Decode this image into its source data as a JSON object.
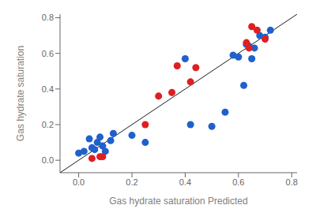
{
  "chart_data": {
    "type": "scatter",
    "xlabel": "Gas hydrate saturation Predicted",
    "ylabel": "Gas hydrate saturation",
    "xlim": [
      -0.07,
      0.82
    ],
    "ylim": [
      -0.07,
      0.82
    ],
    "xticks": [
      {
        "value": 0.0,
        "label": "0.0"
      },
      0.2,
      0.4,
      0.6,
      0.8
    ],
    "yticks": [
      {
        "value": 0.0,
        "label": "0.0"
      },
      0.2,
      0.4,
      0.6,
      0.8
    ],
    "grid": false,
    "series": [
      {
        "type": "line",
        "color": "#1a1a1a",
        "x": [
          -0.07,
          0.82
        ],
        "values": [
          -0.07,
          0.82
        ]
      },
      {
        "type": "scatter",
        "color": "#2060cc",
        "x": [
          0.0,
          0.02,
          0.04,
          0.05,
          0.06,
          0.07,
          0.08,
          0.09,
          0.1,
          0.12,
          0.13,
          0.2,
          0.25,
          0.4,
          0.42,
          0.5,
          0.55,
          0.58,
          0.6,
          0.62,
          0.63,
          0.64,
          0.65,
          0.66,
          0.68,
          0.7,
          0.72
        ],
        "values": [
          0.04,
          0.05,
          0.12,
          0.07,
          0.06,
          0.1,
          0.13,
          0.08,
          0.05,
          0.11,
          0.15,
          0.14,
          0.1,
          0.57,
          0.2,
          0.19,
          0.27,
          0.59,
          0.58,
          0.42,
          0.65,
          0.64,
          0.57,
          0.63,
          0.7,
          0.69,
          0.73
        ]
      },
      {
        "type": "scatter",
        "color": "#dd2020",
        "x": [
          0.05,
          0.08,
          0.09,
          0.25,
          0.3,
          0.35,
          0.37,
          0.42,
          0.44,
          0.63,
          0.64,
          0.65,
          0.67,
          0.7
        ],
        "values": [
          0.01,
          0.02,
          0.02,
          0.2,
          0.36,
          0.38,
          0.53,
          0.44,
          0.52,
          0.66,
          0.63,
          0.75,
          0.73,
          0.68
        ]
      }
    ]
  }
}
